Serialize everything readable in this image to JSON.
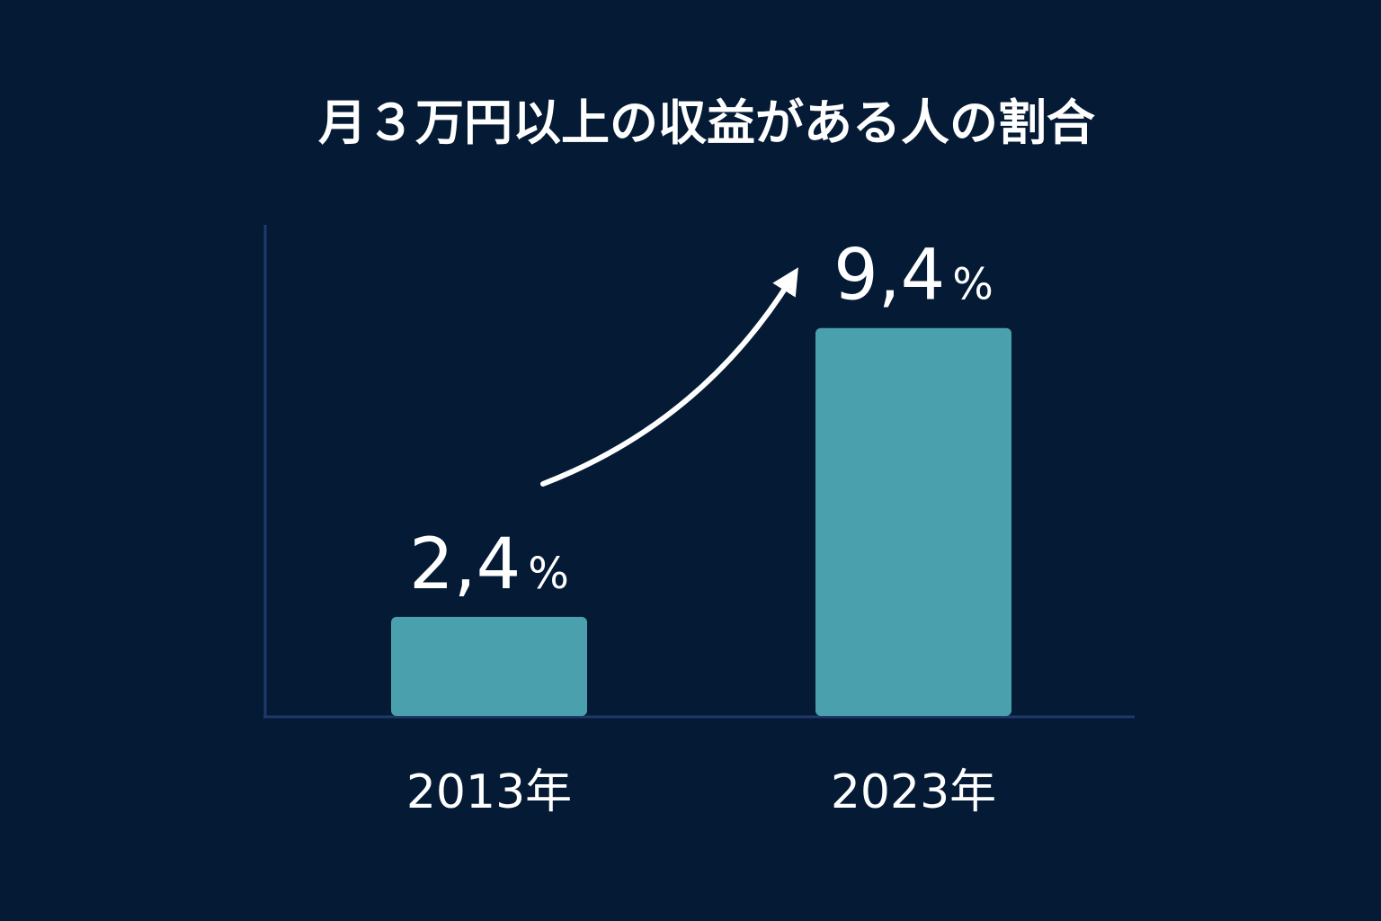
{
  "colors": {
    "background": "#041a35",
    "bar": "#4aa1ad",
    "axis": "#1f3a6a",
    "text": "#ffffff",
    "arrow": "#ffffff"
  },
  "chart_data": {
    "type": "bar",
    "title": "月３万円以上の収益がある人の割合",
    "categories": [
      "2013年",
      "2023年"
    ],
    "values": [
      2.4,
      9.4
    ],
    "value_labels": [
      {
        "number": "2,4",
        "unit": "%"
      },
      {
        "number": "9,4",
        "unit": "%"
      }
    ],
    "ylim": [
      0,
      11.9
    ],
    "grid": false,
    "legend": "none",
    "annotations": [
      "arrow-up-from-2013-to-2023"
    ]
  }
}
